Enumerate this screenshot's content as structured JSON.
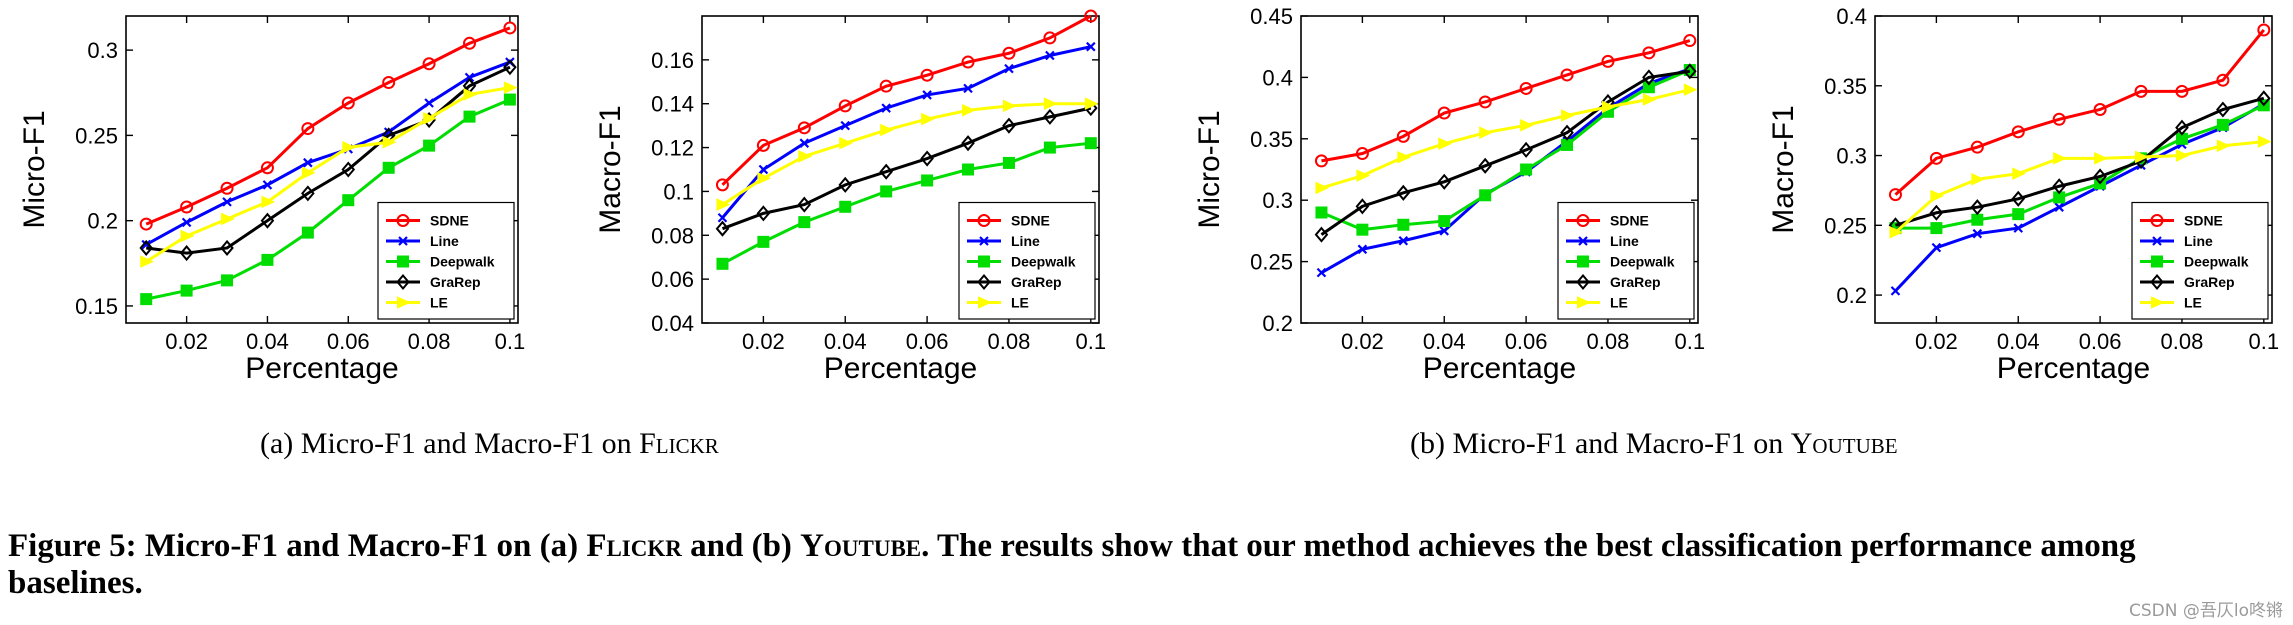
{
  "chart_data": [
    {
      "type": "line",
      "panel": "flickr-micro",
      "title": "",
      "xlabel": "Percentage",
      "ylabel": "Micro-F1",
      "x": [
        0.01,
        0.02,
        0.03,
        0.04,
        0.05,
        0.06,
        0.07,
        0.08,
        0.09,
        0.1
      ],
      "xlim": [
        0.005,
        0.102
      ],
      "ylim": [
        0.14,
        0.32
      ],
      "xticks": [
        0.02,
        0.04,
        0.06,
        0.08,
        0.1
      ],
      "xtick_labels": [
        "0.02",
        "0.04",
        "0.06",
        "0.08",
        "0.1"
      ],
      "yticks": [
        0.15,
        0.2,
        0.25,
        0.3
      ],
      "ytick_labels": [
        "0.15",
        "0.2",
        "0.25",
        "0.3"
      ],
      "legend_position": "bottom-right",
      "series": [
        {
          "name": "SDNE",
          "color": "#ff0000",
          "marker": "circle",
          "values": [
            0.198,
            0.208,
            0.219,
            0.231,
            0.254,
            0.269,
            0.281,
            0.292,
            0.304,
            0.313
          ]
        },
        {
          "name": "Line",
          "color": "#0000ff",
          "marker": "x",
          "values": [
            0.186,
            0.199,
            0.211,
            0.221,
            0.234,
            0.242,
            0.252,
            0.269,
            0.284,
            0.293
          ]
        },
        {
          "name": "Deepwalk",
          "color": "#00dd00",
          "marker": "square",
          "values": [
            0.154,
            0.159,
            0.165,
            0.177,
            0.193,
            0.212,
            0.231,
            0.244,
            0.261,
            0.271
          ]
        },
        {
          "name": "GraRep",
          "color": "#000000",
          "marker": "diamond",
          "values": [
            0.184,
            0.181,
            0.184,
            0.2,
            0.216,
            0.23,
            0.25,
            0.259,
            0.279,
            0.29
          ]
        },
        {
          "name": "LE",
          "color": "#ffff00",
          "marker": "triangle",
          "values": [
            0.176,
            0.191,
            0.201,
            0.211,
            0.228,
            0.243,
            0.246,
            0.26,
            0.274,
            0.278
          ]
        }
      ]
    },
    {
      "type": "line",
      "panel": "flickr-macro",
      "title": "",
      "xlabel": "Percentage",
      "ylabel": "Macro-F1",
      "x": [
        0.01,
        0.02,
        0.03,
        0.04,
        0.05,
        0.06,
        0.07,
        0.08,
        0.09,
        0.1
      ],
      "xlim": [
        0.005,
        0.102
      ],
      "ylim": [
        0.04,
        0.18
      ],
      "xticks": [
        0.02,
        0.04,
        0.06,
        0.08,
        0.1
      ],
      "xtick_labels": [
        "0.02",
        "0.04",
        "0.06",
        "0.08",
        "0.1"
      ],
      "yticks": [
        0.04,
        0.06,
        0.08,
        0.1,
        0.12,
        0.14,
        0.16
      ],
      "ytick_labels": [
        "0.04",
        "0.06",
        "0.08",
        "0.1",
        "0.12",
        "0.14",
        "0.16"
      ],
      "legend_position": "bottom-right",
      "series": [
        {
          "name": "SDNE",
          "color": "#ff0000",
          "marker": "circle",
          "values": [
            0.103,
            0.121,
            0.129,
            0.139,
            0.148,
            0.153,
            0.159,
            0.163,
            0.17,
            0.18
          ]
        },
        {
          "name": "Line",
          "color": "#0000ff",
          "marker": "x",
          "values": [
            0.088,
            0.11,
            0.122,
            0.13,
            0.138,
            0.144,
            0.147,
            0.156,
            0.162,
            0.166
          ]
        },
        {
          "name": "Deepwalk",
          "color": "#00dd00",
          "marker": "square",
          "values": [
            0.067,
            0.077,
            0.086,
            0.093,
            0.1,
            0.105,
            0.11,
            0.113,
            0.12,
            0.122
          ]
        },
        {
          "name": "GraRep",
          "color": "#000000",
          "marker": "diamond",
          "values": [
            0.083,
            0.09,
            0.094,
            0.103,
            0.109,
            0.115,
            0.122,
            0.13,
            0.134,
            0.138
          ]
        },
        {
          "name": "LE",
          "color": "#ffff00",
          "marker": "triangle",
          "values": [
            0.094,
            0.106,
            0.116,
            0.122,
            0.128,
            0.133,
            0.137,
            0.139,
            0.14,
            0.14
          ]
        }
      ]
    },
    {
      "type": "line",
      "panel": "youtube-micro",
      "title": "",
      "xlabel": "Percentage",
      "ylabel": "Micro-F1",
      "x": [
        0.01,
        0.02,
        0.03,
        0.04,
        0.05,
        0.06,
        0.07,
        0.08,
        0.09,
        0.1
      ],
      "xlim": [
        0.005,
        0.102
      ],
      "ylim": [
        0.2,
        0.45
      ],
      "xticks": [
        0.02,
        0.04,
        0.06,
        0.08,
        0.1
      ],
      "xtick_labels": [
        "0.02",
        "0.04",
        "0.06",
        "0.08",
        "0.1"
      ],
      "yticks": [
        0.2,
        0.25,
        0.3,
        0.35,
        0.4,
        0.45
      ],
      "ytick_labels": [
        "0.2",
        "0.25",
        "0.3",
        "0.35",
        "0.4",
        "0.45"
      ],
      "legend_position": "bottom-right",
      "series": [
        {
          "name": "SDNE",
          "color": "#ff0000",
          "marker": "circle",
          "values": [
            0.332,
            0.338,
            0.352,
            0.371,
            0.38,
            0.391,
            0.402,
            0.413,
            0.42,
            0.43
          ]
        },
        {
          "name": "Line",
          "color": "#0000ff",
          "marker": "x",
          "values": [
            0.241,
            0.26,
            0.267,
            0.275,
            0.305,
            0.323,
            0.348,
            0.375,
            0.395,
            0.407
          ]
        },
        {
          "name": "Deepwalk",
          "color": "#00dd00",
          "marker": "square",
          "values": [
            0.29,
            0.276,
            0.28,
            0.283,
            0.304,
            0.325,
            0.345,
            0.372,
            0.392,
            0.406
          ]
        },
        {
          "name": "GraRep",
          "color": "#000000",
          "marker": "diamond",
          "values": [
            0.272,
            0.295,
            0.306,
            0.315,
            0.328,
            0.341,
            0.355,
            0.38,
            0.4,
            0.405
          ]
        },
        {
          "name": "LE",
          "color": "#ffff00",
          "marker": "triangle",
          "values": [
            0.31,
            0.32,
            0.335,
            0.346,
            0.355,
            0.361,
            0.369,
            0.376,
            0.382,
            0.39
          ]
        }
      ]
    },
    {
      "type": "line",
      "panel": "youtube-macro",
      "title": "",
      "xlabel": "Percentage",
      "ylabel": "Macro-F1",
      "x": [
        0.01,
        0.02,
        0.03,
        0.04,
        0.05,
        0.06,
        0.07,
        0.08,
        0.09,
        0.1
      ],
      "xlim": [
        0.005,
        0.102
      ],
      "ylim": [
        0.18,
        0.4
      ],
      "xticks": [
        0.02,
        0.04,
        0.06,
        0.08,
        0.1
      ],
      "xtick_labels": [
        "0.02",
        "0.04",
        "0.06",
        "0.08",
        "0.1"
      ],
      "yticks": [
        0.2,
        0.25,
        0.3,
        0.35,
        0.4
      ],
      "ytick_labels": [
        "0.2",
        "0.25",
        "0.3",
        "0.35",
        "0.4"
      ],
      "legend_position": "bottom-right",
      "series": [
        {
          "name": "SDNE",
          "color": "#ff0000",
          "marker": "circle",
          "values": [
            0.272,
            0.298,
            0.306,
            0.317,
            0.326,
            0.333,
            0.346,
            0.346,
            0.354,
            0.39
          ]
        },
        {
          "name": "Line",
          "color": "#0000ff",
          "marker": "x",
          "values": [
            0.203,
            0.234,
            0.244,
            0.248,
            0.263,
            0.278,
            0.293,
            0.308,
            0.32,
            0.337
          ]
        },
        {
          "name": "Deepwalk",
          "color": "#00dd00",
          "marker": "square",
          "values": [
            0.248,
            0.248,
            0.254,
            0.258,
            0.27,
            0.28,
            0.298,
            0.312,
            0.322,
            0.336
          ]
        },
        {
          "name": "GraRep",
          "color": "#000000",
          "marker": "diamond",
          "values": [
            0.25,
            0.259,
            0.263,
            0.269,
            0.278,
            0.285,
            0.296,
            0.32,
            0.333,
            0.341
          ]
        },
        {
          "name": "LE",
          "color": "#ffff00",
          "marker": "triangle",
          "values": [
            0.245,
            0.271,
            0.283,
            0.287,
            0.298,
            0.298,
            0.299,
            0.3,
            0.307,
            0.31
          ]
        }
      ]
    }
  ],
  "subcaptions": {
    "a": {
      "prefix": "(a) Micro-F1 and Macro-F1 on ",
      "dataset": "Flickr"
    },
    "b": {
      "prefix": "(b) Micro-F1 and Macro-F1 on ",
      "dataset": "Youtube"
    }
  },
  "caption": {
    "part1": "Figure 5: Micro-F1 and Macro-F1 on (a) ",
    "dataset_a": "Flickr",
    "part2": " and (b) ",
    "dataset_b": "Youtube",
    "part3": ". The results show that our method achieves the best classification performance among baselines."
  },
  "watermark": "CSDN @吾仄lo咚锵"
}
